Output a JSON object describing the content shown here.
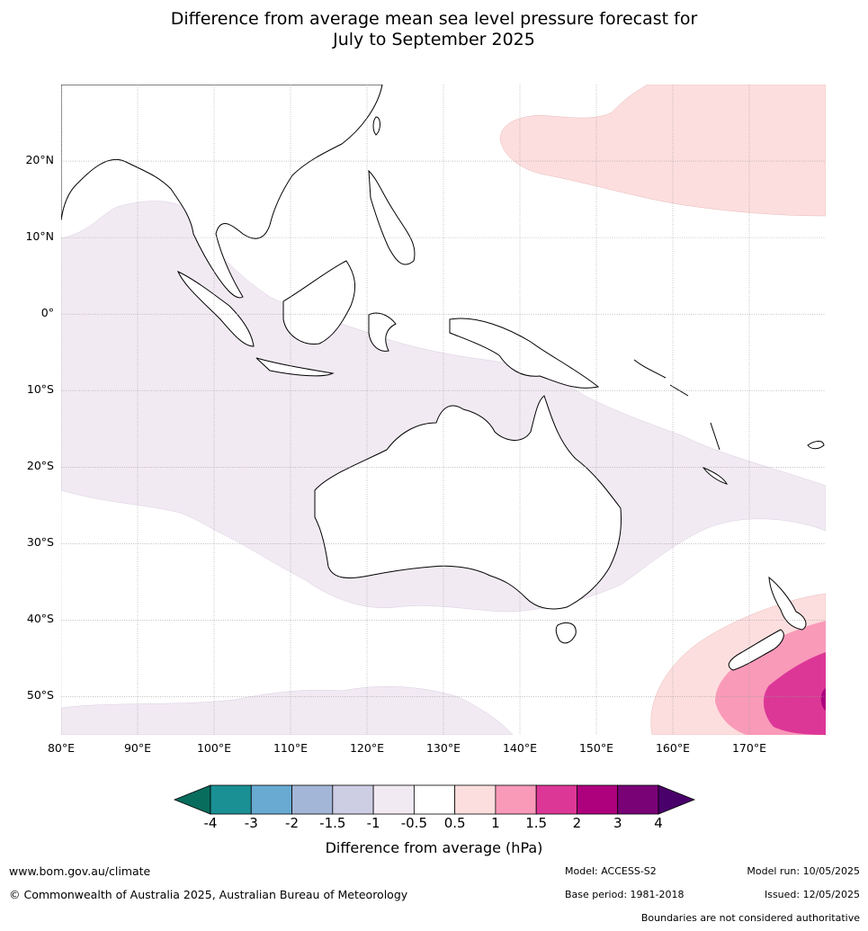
{
  "title_line1": "Difference from average mean sea level pressure forecast for",
  "title_line2": "July to September 2025",
  "map": {
    "lat_labels": [
      "20°N",
      "10°N",
      "0°",
      "10°S",
      "20°S",
      "30°S",
      "40°S",
      "50°S"
    ],
    "lat_values": [
      20,
      10,
      0,
      -10,
      -20,
      -30,
      -40,
      -50
    ],
    "lon_labels": [
      "80°E",
      "90°E",
      "100°E",
      "110°E",
      "120°E",
      "130°E",
      "140°E",
      "150°E",
      "160°E",
      "170°E"
    ],
    "lon_values": [
      80,
      90,
      100,
      110,
      120,
      130,
      140,
      150,
      160,
      170
    ],
    "extent": {
      "lon_min": 80,
      "lon_max": 180,
      "lat_min": -55,
      "lat_max": 30
    }
  },
  "colorbar": {
    "ticks": [
      "-4",
      "-3",
      "-2",
      "-1.5",
      "-1",
      "-0.5",
      "0.5",
      "1",
      "1.5",
      "2",
      "3",
      "4"
    ],
    "colors": [
      "#1a9095",
      "#69aad2",
      "#a4b6d7",
      "#cdcde3",
      "#f2eaf3",
      "#ffffff",
      "#fddede",
      "#f99ab9",
      "#dc3797",
      "#ad017e",
      "#790277"
    ],
    "low_extend_color": "#086d5d",
    "high_extend_color": "#4a006a",
    "label": "Difference from average (hPa)"
  },
  "footer": {
    "website": "www.bom.gov.au/climate",
    "copyright": "© Commonwealth of Australia 2025, Australian Bureau of Meteorology",
    "model": "Model: ACCESS-S2",
    "model_run": "Model run: 10/05/2025",
    "base_period": "Base period: 1981-2018",
    "issued": "Issued: 12/05/2025",
    "disclaimer": "Boundaries are not considered authoritative"
  }
}
